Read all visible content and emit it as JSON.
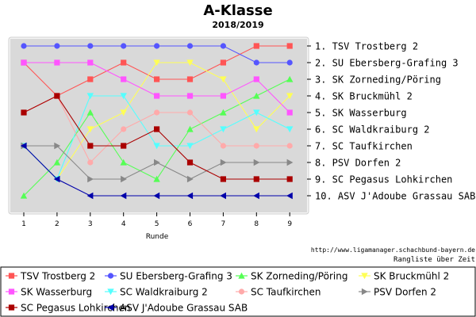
{
  "chart_data": {
    "type": "line",
    "title": "A-Klasse",
    "subtitle": "2018/2019",
    "xlabel": "Runde",
    "ylabel": "",
    "x": [
      1,
      2,
      3,
      4,
      5,
      6,
      7,
      8,
      9
    ],
    "ylim": [
      1,
      10
    ],
    "y_inverted": true,
    "grid": false,
    "legend_position": "bottom",
    "source_text": "http://www.ligamanager.schachbund-bayern.de",
    "caption": "Rangliste über Zeit",
    "ranking_labels": [
      "1. TSV Trostberg 2",
      "2. SU Ebersberg-Grafing 3",
      "3. SK Zorneding/Pöring",
      "4. SK Bruckmühl 2",
      "5. SK Wasserburg",
      "6. SC Waldkraiburg 2",
      "7. SC Taufkirchen",
      "8. PSV Dorfen 2",
      "9. SC Pegasus Lohkirchen",
      "10. ASV J'Adoube Grassau SAB"
    ],
    "series": [
      {
        "name": "TSV Trostberg 2",
        "color": "#ff5555",
        "marker": "square",
        "values": [
          2,
          4,
          3,
          2,
          3,
          3,
          2,
          1,
          1
        ]
      },
      {
        "name": "SU Ebersberg-Grafing 3",
        "color": "#5555ff",
        "marker": "circle",
        "values": [
          1,
          1,
          1,
          1,
          1,
          1,
          1,
          2,
          2
        ]
      },
      {
        "name": "SK Zorneding/Pöring",
        "color": "#55ff55",
        "marker": "triangle-up",
        "values": [
          10,
          8,
          5,
          8,
          9,
          6,
          5,
          4,
          3
        ]
      },
      {
        "name": "SK Bruckmühl 2",
        "color": "#ffff55",
        "marker": "triangle-down",
        "values": [
          7,
          9,
          6,
          5,
          2,
          2,
          3,
          6,
          4
        ]
      },
      {
        "name": "SK Wasserburg",
        "color": "#ff55ff",
        "marker": "square",
        "values": [
          2,
          2,
          2,
          3,
          4,
          4,
          4,
          3,
          5
        ]
      },
      {
        "name": "SC Waldkraiburg 2",
        "color": "#55ffff",
        "marker": "triangle-down",
        "values": [
          7,
          9,
          4,
          4,
          7,
          7,
          6,
          5,
          6
        ]
      },
      {
        "name": "SC Taufkirchen",
        "color": "#ffaaaa",
        "marker": "circle",
        "values": [
          5,
          4,
          8,
          6,
          5,
          5,
          7,
          7,
          7
        ]
      },
      {
        "name": "PSV Dorfen 2",
        "color": "#888888",
        "marker": "triangle-right",
        "values": [
          7,
          7,
          9,
          9,
          8,
          9,
          8,
          8,
          8
        ]
      },
      {
        "name": "SC Pegasus Lohkirchen",
        "color": "#aa0000",
        "marker": "square",
        "values": [
          5,
          4,
          7,
          7,
          6,
          8,
          9,
          9,
          9
        ]
      },
      {
        "name": "ASV J'Adoube Grassau SAB",
        "color": "#0000aa",
        "marker": "triangle-left",
        "values": [
          7,
          9,
          10,
          10,
          10,
          10,
          10,
          10,
          10
        ]
      }
    ]
  }
}
